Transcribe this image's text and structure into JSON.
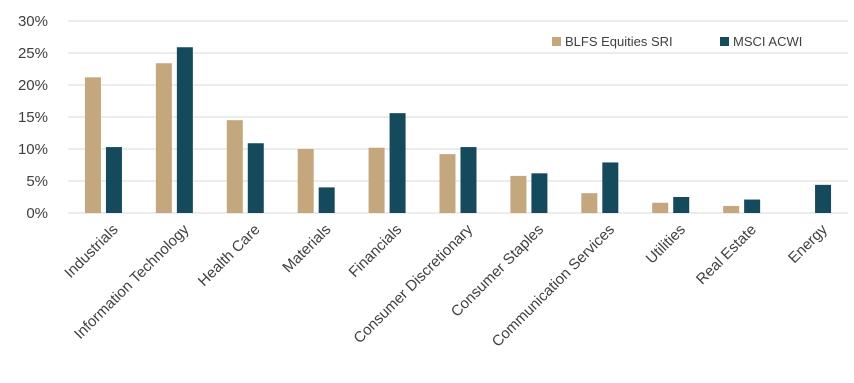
{
  "chart_data": {
    "type": "bar",
    "categories": [
      "Industrials",
      "Information Technology",
      "Health Care",
      "Materials",
      "Financials",
      "Consumer Discretionary",
      "Consumer Staples",
      "Communication Services",
      "Utilities",
      "Real Estate",
      "Energy"
    ],
    "series": [
      {
        "name": "BLFS Equities SRI",
        "color": "#c4a77d",
        "values": [
          21.2,
          23.4,
          14.5,
          10.0,
          10.2,
          9.2,
          5.8,
          3.1,
          1.6,
          1.1,
          0
        ]
      },
      {
        "name": "MSCI ACWI",
        "color": "#154a5c",
        "values": [
          10.3,
          25.9,
          10.9,
          4.0,
          15.6,
          10.3,
          6.2,
          7.9,
          2.5,
          2.1,
          4.4
        ]
      }
    ],
    "yticks": [
      "0%",
      "5%",
      "10%",
      "15%",
      "20%",
      "25%",
      "30%"
    ],
    "ylim": [
      0,
      30
    ],
    "grid": true,
    "legend_position": "top-right",
    "title": "",
    "xlabel": "",
    "ylabel": ""
  }
}
